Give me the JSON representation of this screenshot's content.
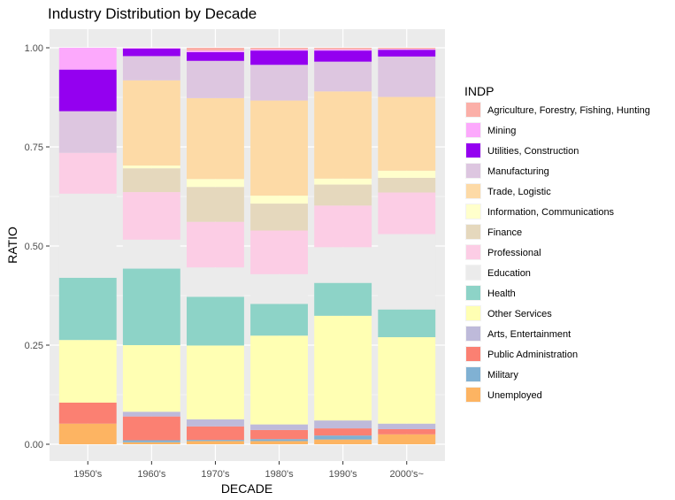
{
  "chart_data": {
    "type": "bar",
    "stacked": true,
    "title": "Industry Distribution by Decade",
    "xlabel": "DECADE",
    "ylabel": "RATIO",
    "ylim": [
      0,
      1
    ],
    "yticks": [
      "0.00",
      "0.25",
      "0.50",
      "0.75",
      "1.00"
    ],
    "grid": true,
    "legend_position": "right",
    "legend_title": "INDP",
    "categories": [
      "1950's",
      "1960's",
      "1970's",
      "1980's",
      "1990's",
      "2000's~"
    ],
    "series": [
      {
        "name": "Unemployed",
        "color": "#FDB462",
        "values": [
          0.052,
          0.005,
          0.008,
          0.008,
          0.012,
          0.025
        ]
      },
      {
        "name": "Military",
        "color": "#80B1D3",
        "values": [
          0.0,
          0.005,
          0.003,
          0.005,
          0.01,
          0.0
        ]
      },
      {
        "name": "Public Administration",
        "color": "#FB8072",
        "values": [
          0.053,
          0.06,
          0.034,
          0.023,
          0.018,
          0.013
        ]
      },
      {
        "name": "Arts, Entertainment",
        "color": "#BEBADA",
        "values": [
          0.0,
          0.012,
          0.018,
          0.014,
          0.02,
          0.014
        ]
      },
      {
        "name": "Other Services",
        "color": "#FFFFB3",
        "values": [
          0.158,
          0.168,
          0.186,
          0.224,
          0.264,
          0.218
        ]
      },
      {
        "name": "Health",
        "color": "#8DD3C7",
        "values": [
          0.157,
          0.193,
          0.123,
          0.08,
          0.083,
          0.07
        ]
      },
      {
        "name": "Education",
        "color": "#EBEBEB",
        "values": [
          0.212,
          0.073,
          0.074,
          0.075,
          0.09,
          0.19
        ]
      },
      {
        "name": "Professional",
        "color": "#FCCDE5",
        "values": [
          0.103,
          0.12,
          0.115,
          0.11,
          0.105,
          0.105
        ]
      },
      {
        "name": "Finance",
        "color": "#E5D8BD",
        "values": [
          0.0,
          0.06,
          0.088,
          0.068,
          0.053,
          0.037
        ]
      },
      {
        "name": "Information, Communications",
        "color": "#FFFFCC",
        "values": [
          0.0,
          0.007,
          0.02,
          0.02,
          0.015,
          0.018
        ]
      },
      {
        "name": "Trade, Logistic",
        "color": "#FDDAA6",
        "values": [
          0.0,
          0.215,
          0.204,
          0.24,
          0.22,
          0.186
        ]
      },
      {
        "name": "Manufacturing",
        "color": "#DDC6E0",
        "values": [
          0.105,
          0.061,
          0.094,
          0.09,
          0.075,
          0.102
        ]
      },
      {
        "name": "Utilities, Construction",
        "color": "#9400F0",
        "values": [
          0.105,
          0.019,
          0.022,
          0.036,
          0.028,
          0.017
        ]
      },
      {
        "name": "Mining",
        "color": "#FCA9FC",
        "values": [
          0.055,
          0.002,
          0.004,
          0.003,
          0.003,
          0.002
        ]
      },
      {
        "name": "Agriculture, Forestry, Fishing, Hunting",
        "color": "#FBAFA8",
        "values": [
          0.0,
          0.0,
          0.007,
          0.004,
          0.004,
          0.003
        ]
      }
    ]
  }
}
